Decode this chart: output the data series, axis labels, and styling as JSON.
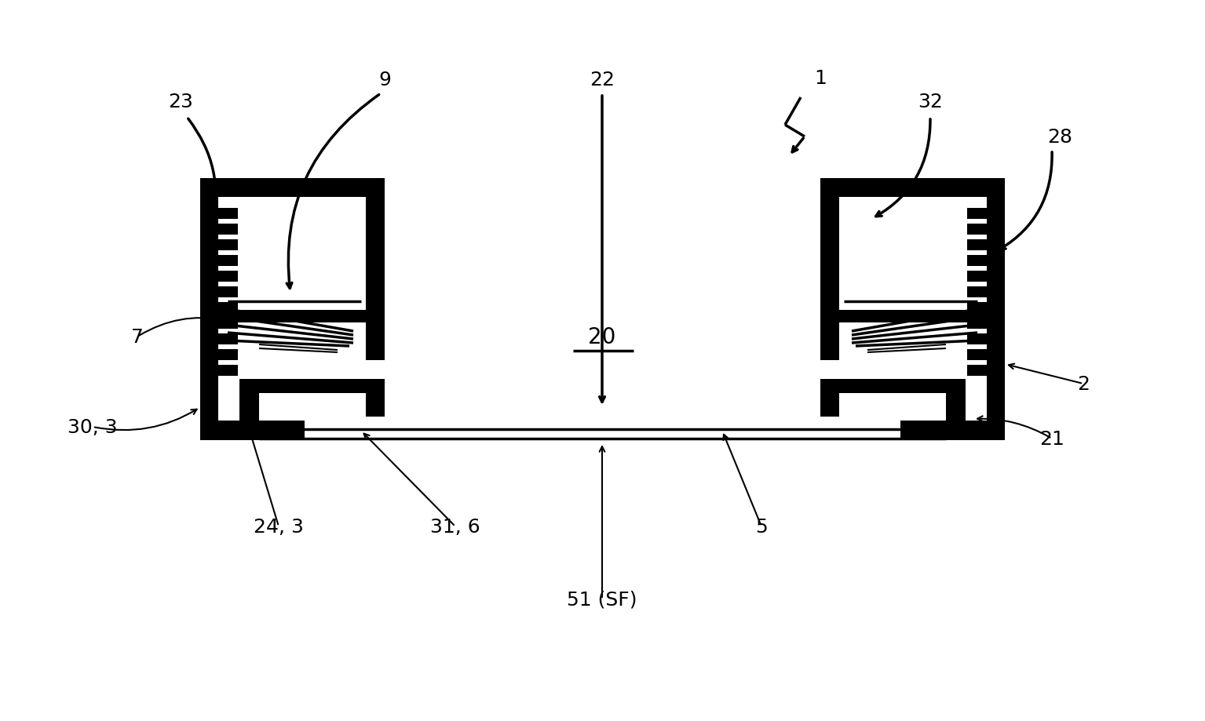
{
  "bg_color": "#ffffff",
  "lc": "#000000",
  "fig_width": 15.35,
  "fig_height": 9.2,
  "xlim": [
    0,
    1535
  ],
  "ylim": [
    0,
    920
  ],
  "lw_thin": 1.5,
  "lw_med": 2.5,
  "lw_thick": 5.0,
  "font_size": 18
}
